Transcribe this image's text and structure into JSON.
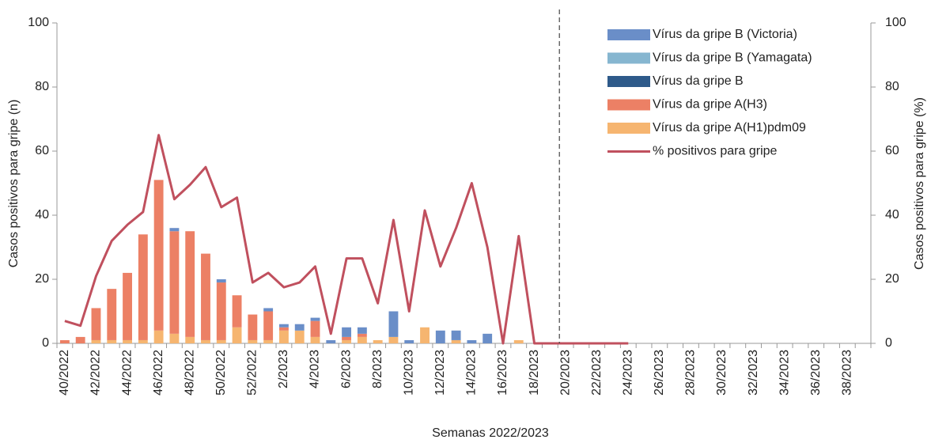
{
  "chart_data": {
    "type": "bar",
    "stacked": true,
    "x_label": "Semanas 2022/2023",
    "y_label": "Casos positivos para gripe (n)",
    "y2_label": "Casos positivos para gripe (%)",
    "categories": [
      "40/2022",
      null,
      "42/2022",
      null,
      "44/2022",
      null,
      "46/2022",
      null,
      "48/2022",
      null,
      "50/2022",
      null,
      "52/2022",
      null,
      "2/2023",
      null,
      "4/2023",
      null,
      "6/2023",
      null,
      "8/2023",
      null,
      "10/2023",
      null,
      "12/2023",
      null,
      "14/2023",
      null,
      "16/2023",
      null,
      "18/2023",
      null,
      "20/2023",
      null,
      "22/2023",
      null,
      "24/2023",
      null,
      "26/2023",
      null,
      "28/2023",
      null,
      "30/2023",
      null,
      "32/2023",
      null,
      "34/2023",
      null,
      "36/2023",
      null,
      "38/2023",
      null
    ],
    "series": [
      {
        "name": "Vírus da gripe A(H1)pdm09",
        "color": "#f6b570",
        "values": [
          0,
          0,
          1,
          1,
          1,
          1,
          4,
          3,
          2,
          1,
          1,
          5,
          1,
          1,
          4,
          4,
          2,
          0,
          1,
          2,
          1,
          2,
          0,
          5,
          0,
          1,
          0,
          0,
          0,
          1,
          0,
          0,
          0,
          0,
          0,
          0,
          0,
          0,
          0,
          0,
          0,
          0,
          0,
          0,
          0,
          0,
          0,
          0,
          0,
          0,
          0,
          0
        ]
      },
      {
        "name": "Vírus da gripe A(H3)",
        "color": "#ec8065",
        "values": [
          1,
          2,
          10,
          16,
          21,
          33,
          47,
          32,
          33,
          27,
          18,
          10,
          8,
          9,
          1,
          0,
          5,
          0,
          1,
          1,
          0,
          0,
          0,
          0,
          0,
          0,
          0,
          0,
          0,
          0,
          0,
          0,
          0,
          0,
          0,
          0,
          0,
          0,
          0,
          0,
          0,
          0,
          0,
          0,
          0,
          0,
          0,
          0,
          0,
          0,
          0,
          0
        ]
      },
      {
        "name": "Vírus da gripe B",
        "color": "#2e5a8a",
        "values": [
          0,
          0,
          0,
          0,
          0,
          0,
          0,
          0,
          0,
          0,
          0,
          0,
          0,
          0,
          0,
          0,
          0,
          0,
          0,
          0,
          0,
          0,
          0,
          0,
          0,
          0,
          0,
          0,
          0,
          0,
          0,
          0,
          0,
          0,
          0,
          0,
          0,
          0,
          0,
          0,
          0,
          0,
          0,
          0,
          0,
          0,
          0,
          0,
          0,
          0,
          0,
          0
        ]
      },
      {
        "name": "Vírus da gripe B (Yamagata)",
        "color": "#86b6d0",
        "values": [
          0,
          0,
          0,
          0,
          0,
          0,
          0,
          0,
          0,
          0,
          0,
          0,
          0,
          0,
          0,
          0,
          0,
          0,
          0,
          0,
          0,
          0,
          0,
          0,
          0,
          0,
          0,
          0,
          0,
          0,
          0,
          0,
          0,
          0,
          0,
          0,
          0,
          0,
          0,
          0,
          0,
          0,
          0,
          0,
          0,
          0,
          0,
          0,
          0,
          0,
          0,
          0
        ]
      },
      {
        "name": "Vírus da gripe B (Victoria)",
        "color": "#6a8ec8",
        "values": [
          0,
          0,
          0,
          0,
          0,
          0,
          0,
          1,
          0,
          0,
          1,
          0,
          0,
          1,
          1,
          2,
          1,
          1,
          3,
          2,
          0,
          8,
          1,
          0,
          4,
          3,
          1,
          3,
          0,
          0,
          0,
          0,
          0,
          0,
          0,
          0,
          0,
          0,
          0,
          0,
          0,
          0,
          0,
          0,
          0,
          0,
          0,
          0,
          0,
          0,
          0,
          0
        ]
      },
      {
        "name": "% positivos para gripe",
        "color": "#c0505e",
        "type": "line",
        "axis": "y2",
        "values": [
          7,
          5.5,
          21,
          32,
          37,
          41,
          65,
          45,
          49.5,
          55,
          42.5,
          45.5,
          19,
          22,
          17.5,
          19,
          24,
          3,
          26.5,
          26.5,
          12.5,
          38.5,
          10,
          41.5,
          24,
          36,
          50,
          30,
          0,
          33.5,
          0,
          0,
          0,
          0,
          0,
          0,
          0,
          null,
          null,
          null,
          null,
          null,
          null,
          null,
          null,
          null,
          null,
          null,
          null,
          null,
          null,
          null
        ]
      }
    ],
    "ylim": [
      0,
      100
    ],
    "yticks": [
      0,
      20,
      40,
      60,
      80,
      100
    ],
    "y2lim": [
      0,
      100
    ],
    "y2ticks": [
      0,
      20,
      40,
      60,
      80,
      100
    ],
    "legend": "top-right"
  }
}
